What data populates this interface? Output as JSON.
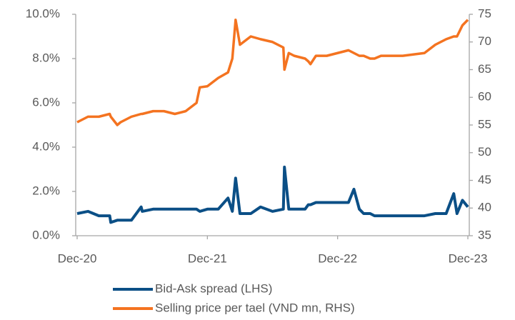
{
  "chart_data": {
    "type": "line",
    "x": [
      0,
      1,
      2,
      3,
      3.1,
      3.7,
      4,
      5,
      5.9,
      6,
      7,
      8,
      9,
      10,
      11,
      11.3,
      12,
      13,
      13.9,
      14.3,
      14.6,
      15,
      16,
      16.9,
      18,
      19,
      19.1,
      19.5,
      20,
      21,
      21.3,
      21.5,
      22,
      23,
      25,
      25.5,
      26,
      26.4,
      27,
      27.4,
      28,
      30,
      32,
      33,
      34,
      34.7,
      35,
      35.5,
      36
    ],
    "xlim": [
      0,
      36
    ],
    "xticks": [
      {
        "value": 0,
        "label": "Dec-20"
      },
      {
        "value": 12,
        "label": "Dec-21"
      },
      {
        "value": 24,
        "label": "Dec-22"
      },
      {
        "value": 36,
        "label": "Dec-23"
      }
    ],
    "ylim": [
      0,
      10
    ],
    "yticks": [
      {
        "value": 0,
        "label": "0.0%"
      },
      {
        "value": 2,
        "label": "2.0%"
      },
      {
        "value": 4,
        "label": "4.0%"
      },
      {
        "value": 6,
        "label": "6.0%"
      },
      {
        "value": 8,
        "label": "8.0%"
      },
      {
        "value": 10,
        "label": "10.0%"
      }
    ],
    "y2lim": [
      35,
      75
    ],
    "y2ticks": [
      35,
      40,
      45,
      50,
      55,
      60,
      65,
      70,
      75
    ],
    "legend": "bottom",
    "series": [
      {
        "name": "Bid-Ask spread (LHS)",
        "color": "#0b4f86",
        "values": [
          1.0,
          1.1,
          0.9,
          0.9,
          0.6,
          0.7,
          0.7,
          0.7,
          1.3,
          1.1,
          1.2,
          1.2,
          1.2,
          1.2,
          1.2,
          1.1,
          1.2,
          1.2,
          1.7,
          1.1,
          2.6,
          1.0,
          1.0,
          1.3,
          1.1,
          1.2,
          3.1,
          1.2,
          1.2,
          1.2,
          1.4,
          1.4,
          1.5,
          1.5,
          1.5,
          2.1,
          1.2,
          1.0,
          1.0,
          0.9,
          0.9,
          0.9,
          0.9,
          1.0,
          1.0,
          1.9,
          1.0,
          1.6,
          1.3
        ]
      },
      {
        "name": "Selling price per tael (VND mn, RHS)",
        "color": "#f47320",
        "axis": "y2",
        "values": [
          55.5,
          56.5,
          56.5,
          57,
          56.5,
          55,
          55.5,
          56.5,
          57,
          57,
          57.5,
          57.5,
          57,
          57.5,
          59,
          61.8,
          62,
          63.5,
          64.5,
          67,
          74,
          69.5,
          71,
          70.5,
          70,
          69,
          65,
          68,
          67.5,
          67,
          66.5,
          66,
          67.5,
          67.5,
          68.5,
          68,
          67.5,
          67.5,
          67,
          67,
          67.5,
          67.5,
          68,
          69.5,
          70.5,
          71,
          71,
          73,
          74
        ]
      }
    ]
  }
}
